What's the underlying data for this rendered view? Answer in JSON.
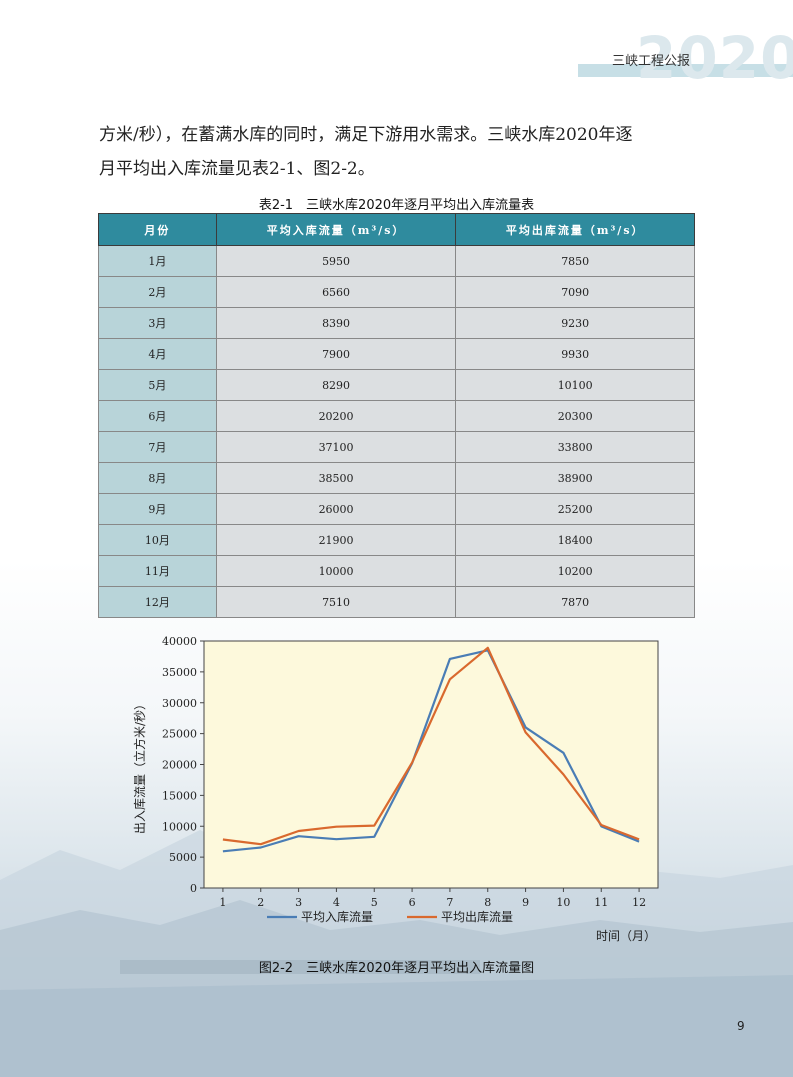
{
  "header": {
    "title": "三峡工程公报",
    "year": "2020"
  },
  "paragraph": {
    "line1": "方米/秒），在蓄满水库的同时，满足下游用水需求。三峡水库2020年逐",
    "line2": "月平均出入库流量见表2-1、图2-2。"
  },
  "table": {
    "caption": "表2-1　三峡水库2020年逐月平均出入库流量表",
    "headers": [
      "月份",
      "平均入库流量（m³/s）",
      "平均出库流量（m³/s）"
    ],
    "rows": [
      [
        "1月",
        "5950",
        "7850"
      ],
      [
        "2月",
        "6560",
        "7090"
      ],
      [
        "3月",
        "8390",
        "9230"
      ],
      [
        "4月",
        "7900",
        "9930"
      ],
      [
        "5月",
        "8290",
        "10100"
      ],
      [
        "6月",
        "20200",
        "20300"
      ],
      [
        "7月",
        "37100",
        "33800"
      ],
      [
        "8月",
        "38500",
        "38900"
      ],
      [
        "9月",
        "26000",
        "25200"
      ],
      [
        "10月",
        "21900",
        "18400"
      ],
      [
        "11月",
        "10000",
        "10200"
      ],
      [
        "12月",
        "7510",
        "7870"
      ]
    ]
  },
  "chart_data": {
    "type": "line",
    "x": [
      1,
      2,
      3,
      4,
      5,
      6,
      7,
      8,
      9,
      10,
      11,
      12
    ],
    "series": [
      {
        "name": "平均入库流量",
        "color": "#4a7db5",
        "values": [
          5950,
          6560,
          8390,
          7900,
          8290,
          20200,
          37100,
          38500,
          26000,
          21900,
          10000,
          7510
        ]
      },
      {
        "name": "平均出库流量",
        "color": "#d9692e",
        "values": [
          7850,
          7090,
          9230,
          9930,
          10100,
          20300,
          33800,
          38900,
          25200,
          18400,
          10200,
          7870
        ]
      }
    ],
    "ylim": [
      0,
      40000
    ],
    "yticks": [
      0,
      5000,
      10000,
      15000,
      20000,
      25000,
      30000,
      35000,
      40000
    ],
    "ylabel": "出入库流量（立方米/秒）",
    "xlabel": "时间（月）",
    "grid": false,
    "legend": "bottom",
    "plot_background": "#fdf9dc"
  },
  "figure": {
    "caption": "图2-2　三峡水库2020年逐月平均出入库流量图"
  },
  "page_number": "9"
}
